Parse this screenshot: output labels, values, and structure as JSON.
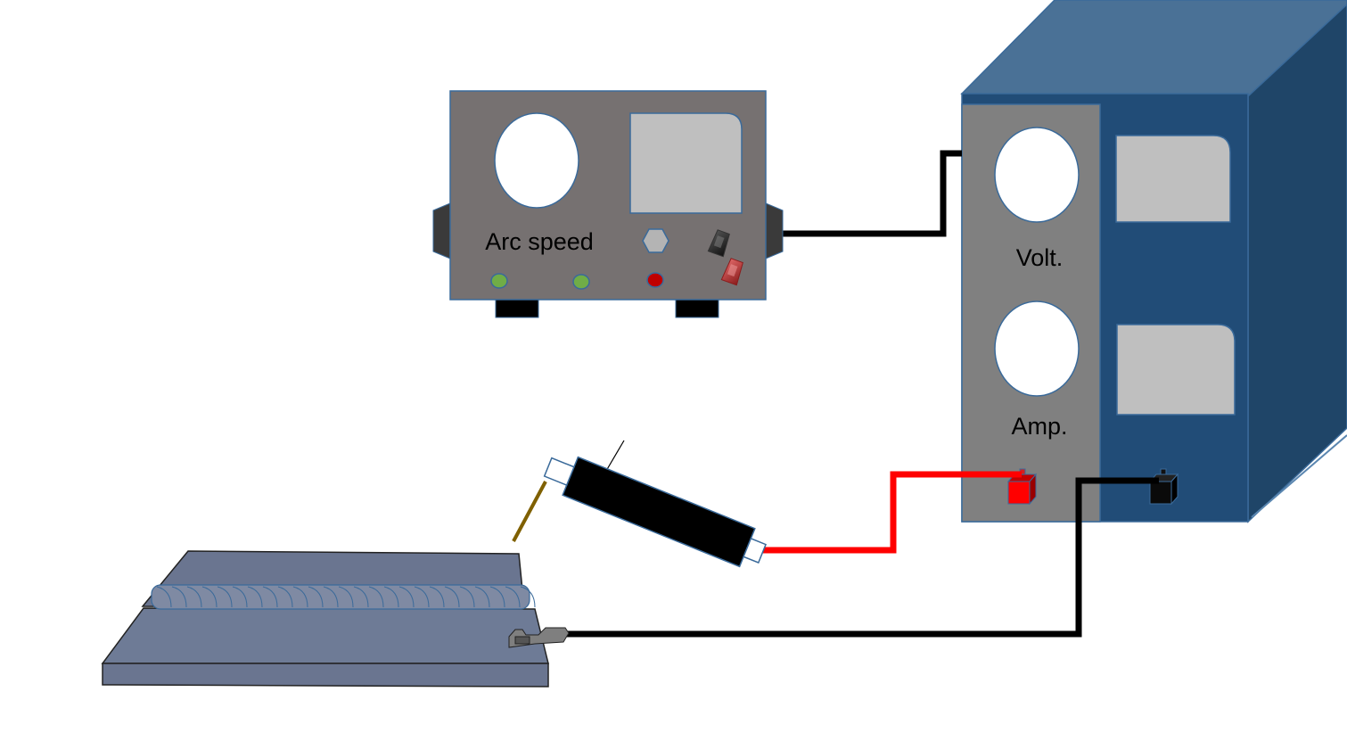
{
  "diagram": {
    "controller": {
      "label": "Arc speed"
    },
    "power_source": {
      "voltage_label": "Volt.",
      "current_label": "Amp."
    }
  }
}
